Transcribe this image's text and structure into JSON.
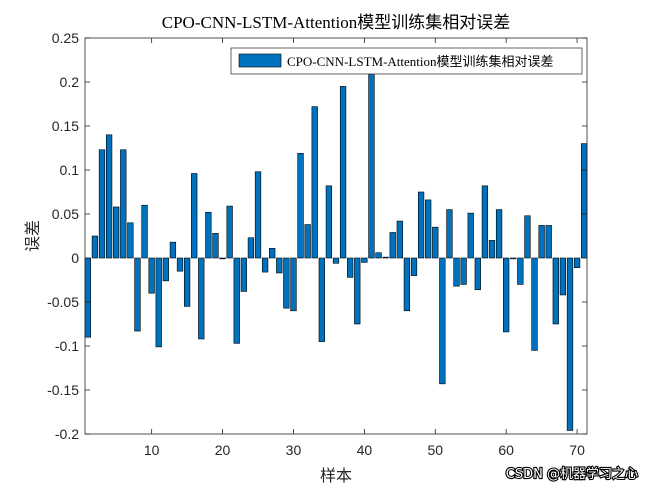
{
  "chart_data": {
    "type": "bar",
    "title": "CPO-CNN-LSTM-Attention模型训练集相对误差",
    "xlabel": "样本",
    "ylabel": "误差",
    "xlim": [
      0.6,
      71.4
    ],
    "ylim": [
      -0.2,
      0.25
    ],
    "xticks": [
      10,
      20,
      30,
      40,
      50,
      60,
      70
    ],
    "yticks": [
      -0.2,
      -0.15,
      -0.1,
      -0.05,
      0,
      0.05,
      0.1,
      0.15,
      0.2,
      0.25
    ],
    "ytick_labels": [
      "-0.2",
      "-0.15",
      "-0.1",
      "-0.05",
      "0",
      "0.05",
      "0.1",
      "0.15",
      "0.2",
      "0.25"
    ],
    "grid": false,
    "legend_position": "top-right",
    "bar_color": "#0072BD",
    "series": [
      {
        "name": "CPO-CNN-LSTM-Attention模型训练集相对误差",
        "x": [
          1,
          2,
          3,
          4,
          5,
          6,
          7,
          8,
          9,
          10,
          11,
          12,
          13,
          14,
          15,
          16,
          17,
          18,
          19,
          20,
          21,
          22,
          23,
          24,
          25,
          26,
          27,
          28,
          29,
          30,
          31,
          32,
          33,
          34,
          35,
          36,
          37,
          38,
          39,
          40,
          41,
          42,
          43,
          44,
          45,
          46,
          47,
          48,
          49,
          50,
          51,
          52,
          53,
          54,
          55,
          56,
          57,
          58,
          59,
          60,
          61,
          62,
          63,
          64,
          65,
          66,
          67,
          68,
          69,
          70,
          71
        ],
        "values": [
          -0.09,
          0.025,
          0.123,
          0.14,
          0.058,
          0.123,
          0.04,
          -0.083,
          0.06,
          -0.04,
          -0.101,
          -0.026,
          0.018,
          -0.015,
          -0.055,
          0.096,
          -0.092,
          0.052,
          0.028,
          -0.001,
          0.059,
          -0.097,
          -0.038,
          0.023,
          0.098,
          -0.016,
          0.011,
          -0.017,
          -0.057,
          -0.06,
          0.119,
          0.038,
          0.172,
          -0.095,
          0.082,
          -0.006,
          0.195,
          -0.022,
          -0.075,
          -0.005,
          0.218,
          0.006,
          0.001,
          0.029,
          0.042,
          -0.06,
          -0.02,
          0.075,
          0.066,
          0.035,
          -0.143,
          0.055,
          -0.032,
          -0.03,
          0.051,
          -0.036,
          0.082,
          0.02,
          0.055,
          -0.084,
          -0.001,
          -0.03,
          0.048,
          -0.105,
          0.037,
          0.037,
          -0.075,
          -0.042,
          -0.196,
          -0.011,
          0.13
        ]
      }
    ]
  },
  "watermark": "CSDN @机器学习之心"
}
